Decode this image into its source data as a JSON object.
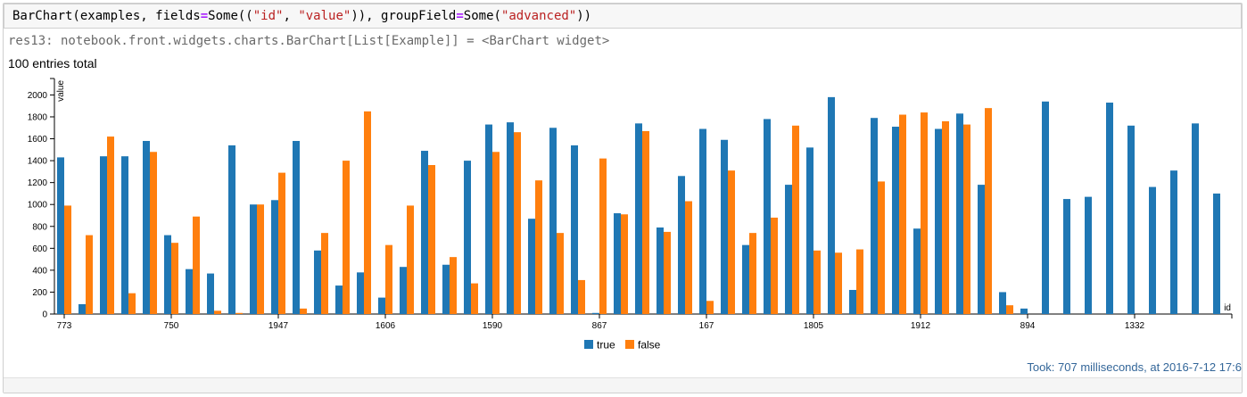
{
  "cell": {
    "code": {
      "fn": "BarChart(examples, fields",
      "eq1": "=",
      "some1": "Some((",
      "s_id": "\"id\"",
      "comma": ", ",
      "s_value": "\"value\"",
      "close1": ")), groupField",
      "eq2": "=",
      "some2": "Some(",
      "s_adv": "\"advanced\"",
      "close2": "))"
    },
    "result_line": "res13: notebook.front.widgets.charts.BarChart[List[Example]] = <BarChart widget>",
    "entries_total": "100 entries total",
    "took": "Took: 707 milliseconds, at 2016-7-12 17:6"
  },
  "colors": {
    "true": "#1f77b4",
    "false": "#ff7f0e"
  },
  "chart_data": {
    "type": "bar",
    "ylabel": "value",
    "xlabel": "id",
    "ylim": [
      0,
      2150
    ],
    "y_ticks": [
      0,
      200,
      400,
      600,
      800,
      1000,
      1200,
      1400,
      1600,
      1800,
      2000
    ],
    "x_tick_labels": [
      "773",
      "750",
      "1947",
      "1606",
      "1590",
      "867",
      "167",
      "1805",
      "1912",
      "894",
      "1332"
    ],
    "legend": {
      "position": "bottom-center"
    },
    "series": [
      {
        "name": "true",
        "values": [
          1430,
          90,
          1440,
          1440,
          1580,
          720,
          410,
          370,
          1540,
          1000,
          1040,
          1580,
          580,
          260,
          380,
          150,
          430,
          1490,
          450,
          1400,
          1730,
          1750,
          870,
          1700,
          1540,
          10,
          920,
          1740,
          790,
          1260,
          1690,
          1590,
          630,
          1780,
          1180,
          1520,
          1980,
          220,
          1790,
          1710,
          780,
          1690,
          1830,
          1180,
          200,
          50,
          1940,
          1050,
          1070,
          1930,
          1720,
          1160,
          1310,
          1740,
          1100
        ]
      },
      {
        "name": "false",
        "values": [
          990,
          720,
          1620,
          190,
          1480,
          650,
          890,
          30,
          10,
          1000,
          1290,
          50,
          740,
          1400,
          1850,
          630,
          990,
          1360,
          520,
          280,
          1480,
          1660,
          1220,
          740,
          310,
          1420,
          910,
          1670,
          750,
          1030,
          120,
          1310,
          740,
          880,
          1720,
          580,
          560,
          590,
          1210,
          1820,
          1840,
          1760,
          1730,
          1880,
          80,
          null,
          null,
          null,
          null,
          null,
          null,
          null,
          null,
          null,
          null
        ]
      }
    ]
  }
}
